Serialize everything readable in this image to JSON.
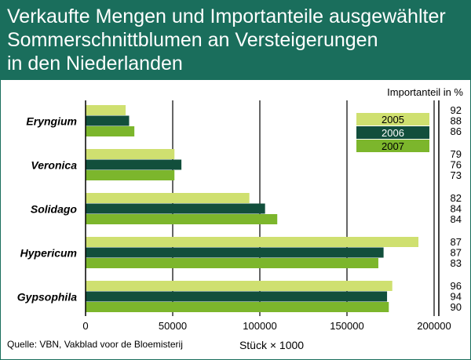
{
  "title_lines": [
    "Verkaufte Mengen und Importanteile ausgewählter",
    "Sommerschnittblumen an Versteigerungen",
    "in den Niederlanden"
  ],
  "source": "Quelle: VBN, Vakblad voor de Bloemisterij",
  "colors": {
    "title_band": "#1a6e5c",
    "series_2005": "#cfe070",
    "series_2006": "#124f3c",
    "series_2007": "#7cb62c"
  },
  "chart_data": {
    "type": "bar",
    "orientation": "horizontal",
    "categories": [
      "Eryngium",
      "Veronica",
      "Solidago",
      "Hypericum",
      "Gypsophila"
    ],
    "series": [
      {
        "name": "2005",
        "values": [
          23000,
          51000,
          94000,
          191000,
          176000
        ]
      },
      {
        "name": "2006",
        "values": [
          25000,
          55000,
          103000,
          171000,
          173000
        ]
      },
      {
        "name": "2007",
        "values": [
          28000,
          51000,
          110000,
          168000,
          174000
        ]
      }
    ],
    "import_share_label": "Importanteil in %",
    "import_shares": [
      [
        "92",
        "88",
        "86"
      ],
      [
        "79",
        "76",
        "73"
      ],
      [
        "82",
        "84",
        "84"
      ],
      [
        "87",
        "87",
        "83"
      ],
      [
        "96",
        "94",
        "90"
      ]
    ],
    "xlabel": "Stück × 1000",
    "xlim": [
      0,
      200000
    ],
    "xticks": [
      0,
      50000,
      100000,
      150000,
      200000
    ],
    "xtick_labels": [
      "0",
      "50000",
      "100000",
      "150000",
      "200000"
    ],
    "grid": true,
    "legend_position": "top-right"
  }
}
